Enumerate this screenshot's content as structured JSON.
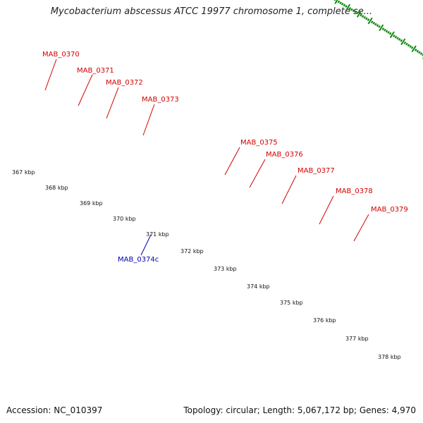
{
  "title": "Mycobacterium abscessus ATCC 19977 chromosome 1, complete se...",
  "footer": {
    "accession": "Accession: NC_010397",
    "summary": "Topology: circular; Length: 5,067,172 bp; Genes: 4,970"
  },
  "colors": {
    "forward_cds": "#ff0000",
    "reverse_cds": "#0000ff",
    "forward_label": "#d40000",
    "reverse_label": "#0000aa",
    "backbone": "#808080",
    "ticks": "#118811"
  },
  "scale_labels": [
    "367 kbp",
    "368 kbp",
    "369 kbp",
    "370 kbp",
    "371 kbp",
    "372 kbp",
    "373 kbp",
    "374 kbp",
    "375 kbp",
    "376 kbp",
    "377 kbp",
    "378 kbp"
  ],
  "gene_labels": [
    "MAB_0370",
    "MAB_0371",
    "MAB_0372",
    "MAB_0373",
    "MAB_0374c",
    "MAB_0375",
    "MAB_0376",
    "MAB_0377",
    "MAB_0378",
    "MAB_0379"
  ]
}
